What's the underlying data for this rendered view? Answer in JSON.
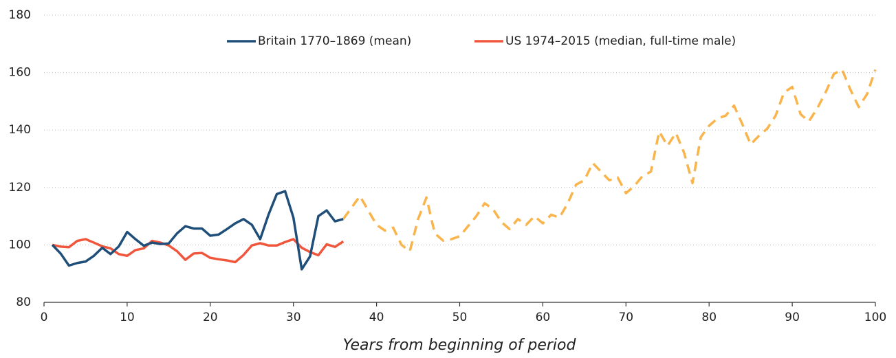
{
  "chart_data": {
    "type": "line",
    "xlabel": "Years from beginning of period",
    "xlim": [
      0,
      100
    ],
    "xticks": [
      0,
      10,
      20,
      30,
      40,
      50,
      60,
      70,
      80,
      90,
      100
    ],
    "ylim": [
      80,
      180
    ],
    "yticks": [
      80,
      100,
      120,
      140,
      160,
      180
    ],
    "grid": true,
    "legend": "top",
    "series": [
      {
        "name": "Britain 1770–1869 (mean)",
        "color": "#1f4e79",
        "dash": false,
        "x": [
          1,
          2,
          3,
          4,
          5,
          6,
          7,
          8,
          9,
          10,
          11,
          12,
          13,
          14,
          15,
          16,
          17,
          18,
          19,
          20,
          21,
          22,
          23,
          24,
          25,
          26,
          27,
          28,
          29,
          30,
          31,
          32,
          33,
          34,
          35,
          36
        ],
        "values": [
          100,
          97,
          92.8,
          93.7,
          94.2,
          96.2,
          99,
          96.8,
          99.5,
          104.5,
          102,
          99.7,
          100.8,
          100.3,
          100.5,
          104,
          106.5,
          105.7,
          105.7,
          103.2,
          103.6,
          105.5,
          107.5,
          109,
          107,
          102,
          110.5,
          117.7,
          118.7,
          109.5,
          91.5,
          96,
          110,
          112,
          108.2,
          109
        ]
      },
      {
        "name": "US 1974–2015 (median, full-time male)",
        "color": "#f0563c",
        "dash": false,
        "x": [
          1,
          2,
          3,
          4,
          5,
          6,
          7,
          8,
          9,
          10,
          11,
          12,
          13,
          14,
          15,
          16,
          17,
          18,
          19,
          20,
          21,
          22,
          23,
          24,
          25,
          26,
          27,
          28,
          29,
          30,
          31,
          32,
          33,
          34,
          35,
          36
        ],
        "values": [
          100,
          99.4,
          99.2,
          101.4,
          102,
          100.8,
          99.5,
          98.8,
          96.8,
          96.2,
          98.2,
          98.8,
          101.4,
          100.8,
          99.8,
          97.8,
          94.8,
          97,
          97.2,
          95.5,
          95,
          94.6,
          94,
          96.5,
          99.8,
          100.6,
          99.8,
          99.8,
          101,
          102,
          99,
          97.5,
          96.4,
          100.2,
          99.3,
          101.2
        ]
      },
      {
        "color": "#f9b44c",
        "dash": true,
        "x": [
          36,
          37,
          38,
          39,
          40,
          41,
          42,
          43,
          44,
          45,
          46,
          47,
          48,
          49,
          50,
          51,
          52,
          53,
          54,
          55,
          56,
          57,
          58,
          59,
          60,
          61,
          62,
          63,
          64,
          65,
          66,
          67,
          68,
          69,
          70,
          71,
          72,
          73,
          74,
          75,
          76,
          77,
          78,
          79,
          80,
          81,
          82,
          83,
          84,
          85,
          86,
          87,
          88,
          89,
          90,
          91,
          92,
          93,
          94,
          95,
          96,
          97,
          98,
          99,
          100
        ],
        "values": [
          109,
          113,
          117,
          112,
          107,
          105,
          106,
          100,
          97.8,
          109,
          116.5,
          104,
          101.5,
          102,
          103,
          106.5,
          110,
          114.5,
          112.5,
          108,
          105.5,
          109,
          107,
          110,
          107.5,
          110.5,
          109.5,
          114.5,
          121,
          122.5,
          128.5,
          125.5,
          122.5,
          123.5,
          118,
          120.5,
          124,
          125.5,
          139.5,
          134.5,
          139,
          132,
          121.5,
          137.5,
          141.5,
          144,
          145,
          148.5,
          142,
          135,
          138,
          140.5,
          145,
          153,
          155,
          145.5,
          143,
          147.5,
          153,
          159.5,
          161,
          154,
          148,
          152.5,
          161
        ]
      }
    ]
  }
}
